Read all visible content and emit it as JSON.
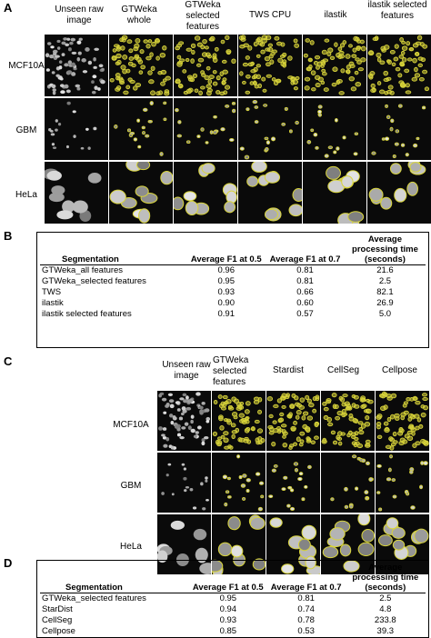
{
  "panel_a": {
    "letter": "A",
    "columns": [
      "Unseen raw image",
      "GTWeka whole",
      "GTWeka selected features",
      "TWS CPU",
      "ilastik",
      "ilastik selected features"
    ],
    "rows": [
      "MCF10A",
      "GBM",
      "HeLa"
    ]
  },
  "panel_b": {
    "letter": "B",
    "headers": [
      "Segmentation",
      "Average F1 at 0.5",
      "Average F1 at 0.7",
      "Average processing time (seconds)"
    ],
    "rows": [
      [
        "GTWeka_all features",
        "0.96",
        "0.81",
        "21.6"
      ],
      [
        "GTWeka_selected features",
        "0.95",
        "0.81",
        "2.5"
      ],
      [
        "TWS",
        "0.93",
        "0.66",
        "82.1"
      ],
      [
        "ilastik",
        "0.90",
        "0.60",
        "26.9"
      ],
      [
        "ilastik selected features",
        "0.91",
        "0.57",
        "5.0"
      ]
    ]
  },
  "panel_c": {
    "letter": "C",
    "columns": [
      "Unseen raw image",
      "GTWeka selected features",
      "Stardist",
      "CellSeg",
      "Cellpose"
    ],
    "rows": [
      "MCF10A",
      "GBM",
      "HeLa"
    ]
  },
  "panel_d": {
    "letter": "D",
    "headers": [
      "Segmentation",
      "Average F1 at 0.5",
      "Average F1 at 0.7",
      "Average processing time (seconds)"
    ],
    "rows": [
      [
        "GTWeka_selected features",
        "0.95",
        "0.81",
        "2.5"
      ],
      [
        "StarDist",
        "0.94",
        "0.74",
        "4.8"
      ],
      [
        "CellSeg",
        "0.93",
        "0.78",
        "233.8"
      ],
      [
        "Cellpose",
        "0.85",
        "0.53",
        "39.3"
      ]
    ]
  },
  "colors": {
    "overlay": "#d8d43a",
    "background": "#0a0a0a",
    "nucleus": "#cfcfcf"
  }
}
